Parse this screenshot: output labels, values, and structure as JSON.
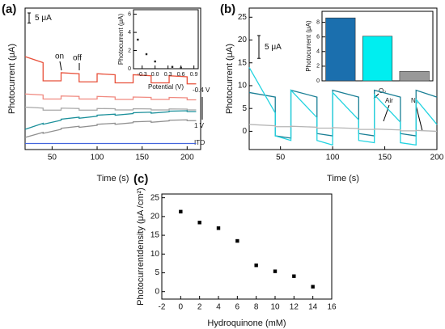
{
  "chart_data": [
    {
      "type": "line",
      "panel": "(a)",
      "xlabel": "Time (s)",
      "ylabel": "Photocurrent (μA)",
      "xlim": [
        20,
        215
      ],
      "ylim": [
        0,
        70
      ],
      "xticks": [
        50,
        100,
        150,
        200
      ],
      "scale_bar": {
        "value": 5,
        "label": "5 μA"
      },
      "annotations": [
        "on",
        "off",
        "-0.4 V",
        "1 V"
      ],
      "x": [
        20,
        40,
        40,
        60,
        60,
        80,
        80,
        100,
        100,
        120,
        120,
        140,
        140,
        160,
        160,
        180,
        180,
        200,
        200,
        210
      ],
      "series": [
        {
          "color": "#e8503a",
          "values": [
            46,
            43,
            34,
            34,
            38,
            37.5,
            33.5,
            33.5,
            37.5,
            37,
            33,
            33,
            37,
            36.5,
            33,
            33,
            36.5,
            36,
            32.5,
            32.5
          ]
        },
        {
          "color": "#f08a80",
          "values": [
            27.5,
            27,
            25,
            25,
            26.5,
            26.3,
            25,
            25,
            26.3,
            26,
            24.8,
            24.8,
            26,
            25.8,
            24.8,
            24.8,
            25.8,
            25.6,
            24.6,
            24.6
          ]
        },
        {
          "color": "#a8a8a8",
          "values": [
            21,
            20.5,
            19.5,
            19.5,
            20.5,
            20.3,
            19.5,
            19.5,
            20.3,
            20.2,
            19.6,
            19.6,
            20.2,
            20.1,
            19.6,
            19.6,
            20.1,
            20,
            19.6,
            19.6
          ]
        },
        {
          "color": "#1a8f9a",
          "values": [
            10,
            13,
            12.5,
            14.5,
            15,
            16,
            15.5,
            16.5,
            17,
            17.5,
            17,
            17.8,
            18.2,
            18.5,
            18,
            18.7,
            19,
            19.2,
            18.8,
            18.8
          ]
        },
        {
          "color": "#909090",
          "values": [
            6,
            8.5,
            8,
            10,
            10.5,
            11.5,
            11,
            12,
            12.5,
            13,
            12.5,
            13.3,
            13.7,
            14,
            13.5,
            14.2,
            14.5,
            14.7,
            14.3,
            14.3
          ]
        },
        {
          "name": "ITO",
          "color": "#4466dd",
          "values": [
            3,
            3,
            3,
            3,
            3,
            3,
            3,
            3,
            3,
            3,
            3,
            3,
            3,
            3,
            3,
            3,
            3,
            3,
            3,
            3
          ]
        }
      ]
    },
    {
      "type": "scatter",
      "xlabel": "Potential (V)",
      "ylabel": "Photocurrent (μA)",
      "xlim": [
        -0.5,
        1.0
      ],
      "ylim": [
        0,
        6.5
      ],
      "xticks": [
        -0.3,
        {
          "value": 0,
          "label": "0.0"
        },
        0.3,
        0.6,
        0.9
      ],
      "yticks": [
        0,
        2,
        4,
        6
      ],
      "x": [
        -0.4,
        -0.2,
        0,
        0.4,
        0.6
      ],
      "values": [
        3.2,
        1.6,
        0.8,
        0.2,
        0.1
      ],
      "color": "#222222"
    },
    {
      "type": "line",
      "panel": "(b)",
      "xlabel": "Time (s)",
      "ylabel": "Photocurrent (μA)",
      "xlim": [
        20,
        200
      ],
      "ylim": [
        -4,
        27
      ],
      "xticks": [
        50,
        100,
        150,
        200
      ],
      "yticks": [
        0,
        5,
        10,
        15,
        20,
        25
      ],
      "scale_bar": {
        "value": 5,
        "label": "5 μA"
      },
      "x": [
        20,
        45,
        45,
        60,
        60,
        85,
        85,
        100,
        100,
        125,
        125,
        140,
        140,
        165,
        165,
        180,
        180,
        200
      ],
      "series": [
        {
          "name": "O₂",
          "color": "#1a7f95",
          "values": [
            8.5,
            7.5,
            -1,
            -1.5,
            9,
            7.5,
            -0.5,
            -1,
            9,
            7.5,
            -0.5,
            -1,
            9,
            7.5,
            -0.5,
            -1,
            9,
            7.5
          ]
        },
        {
          "name": "Air",
          "color": "#22d3e0",
          "values": [
            14,
            4,
            -1,
            -2,
            9,
            3,
            -2,
            -3,
            8.5,
            2.5,
            -2,
            -2.5,
            8,
            2,
            -2.5,
            -3,
            7,
            1.5
          ]
        },
        {
          "name": "N₂",
          "color": "#b5b5b5",
          "values": [
            1.5,
            1.2,
            1,
            1,
            1.1,
            0.9,
            0.7,
            0.7,
            0.8,
            0.6,
            0.4,
            0.4,
            0.5,
            0.3,
            0.1,
            0.1,
            0.2,
            0
          ]
        }
      ]
    },
    {
      "type": "bar",
      "ylabel": "Photocurrent (μA)",
      "ylim": [
        0,
        9.5
      ],
      "yticks": [
        0,
        2,
        4,
        6,
        8
      ],
      "values": [
        8.6,
        6.1,
        1.3
      ],
      "colors": [
        "#1b6fae",
        "#00eef0",
        "#999999"
      ]
    },
    {
      "type": "scatter",
      "panel": "(c)",
      "xlabel": "Hydroquinone (mM)",
      "ylabel": "Photocurrentdensity (μA /cm²)",
      "xlim": [
        -2,
        16
      ],
      "ylim": [
        -2,
        26
      ],
      "xticks": [
        -2,
        0,
        2,
        4,
        6,
        8,
        10,
        12,
        14,
        16
      ],
      "yticks": [
        0,
        5,
        10,
        15,
        20,
        25
      ],
      "x": [
        0,
        2,
        4,
        6,
        8,
        10,
        12,
        14
      ],
      "values": [
        21.3,
        18.4,
        16.9,
        13.5,
        7,
        5.4,
        4.1,
        1.3
      ],
      "color": "#000000"
    }
  ]
}
